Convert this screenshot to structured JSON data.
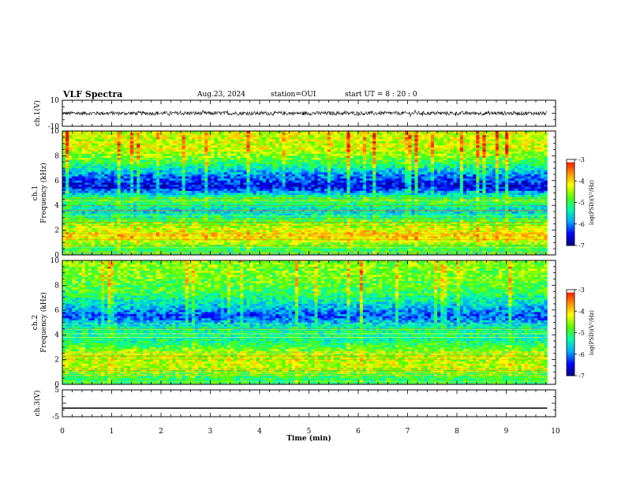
{
  "header": {
    "title": "VLF Spectra",
    "date": "Aug.23, 2024",
    "station": "station=OUI",
    "start_ut": "start UT =  8 : 20 : 0"
  },
  "chart_data": [
    {
      "type": "line",
      "panel": "ch1-waveform",
      "ylabel": "ch.1(V)",
      "ytick_labels": [
        "10",
        "-10"
      ],
      "ylim": [
        -10,
        10
      ],
      "xlim": [
        0,
        10
      ],
      "description_values": {
        "mean": 0,
        "amplitude_range": [
          -1.5,
          1.5
        ]
      }
    },
    {
      "type": "heatmap",
      "panel": "ch1-spectrogram",
      "ylabel_line1": "ch.1",
      "ylabel_line2": "Frequency (kHz)",
      "ytick_labels": [
        "0",
        "2",
        "4",
        "6",
        "8",
        "10"
      ],
      "ylim": [
        0,
        10
      ],
      "xlim": [
        0,
        9.83
      ],
      "colorbar": {
        "label": "log(PSD)(V²/Hz)",
        "tick_labels": [
          "-3",
          "-4",
          "-5",
          "-6",
          "-7"
        ],
        "range": [
          -7,
          -3
        ]
      },
      "approx_log_psd_by_frequency_khz": [
        {
          "f": 0.5,
          "v": -5.0
        },
        {
          "f": 1.5,
          "v": -3.9
        },
        {
          "f": 2.5,
          "v": -4.6
        },
        {
          "f": 3.5,
          "v": -5.6
        },
        {
          "f": 4.5,
          "v": -4.8
        },
        {
          "f": 5.5,
          "v": -6.6
        },
        {
          "f": 6.5,
          "v": -5.9
        },
        {
          "f": 7.5,
          "v": -4.9
        },
        {
          "f": 8.5,
          "v": -4.3
        },
        {
          "f": 9.5,
          "v": -4.3
        }
      ]
    },
    {
      "type": "heatmap",
      "panel": "ch2-spectrogram",
      "ylabel_line1": "ch.2",
      "ylabel_line2": "Frequency (kHz)",
      "ytick_labels": [
        "0",
        "2",
        "4",
        "6",
        "8",
        "10"
      ],
      "ylim": [
        0,
        10
      ],
      "xlim": [
        0,
        9.83
      ],
      "colorbar": {
        "label": "log(PSD)(V²/Hz)",
        "tick_labels": [
          "-3",
          "-4",
          "-5",
          "-6",
          "-7"
        ],
        "range": [
          -7,
          -3
        ]
      },
      "approx_log_psd_by_frequency_khz": [
        {
          "f": 0.5,
          "v": -5.0
        },
        {
          "f": 1.5,
          "v": -4.3
        },
        {
          "f": 2.5,
          "v": -4.5
        },
        {
          "f": 3.5,
          "v": -5.2
        },
        {
          "f": 4.5,
          "v": -5.2
        },
        {
          "f": 5.5,
          "v": -6.2
        },
        {
          "f": 6.5,
          "v": -5.5
        },
        {
          "f": 7.5,
          "v": -4.9
        },
        {
          "f": 8.5,
          "v": -4.7
        },
        {
          "f": 9.5,
          "v": -4.6
        }
      ]
    },
    {
      "type": "line",
      "panel": "ch3-waveform",
      "ylabel": "ch.3(V)",
      "ytick_labels": [
        "5",
        "-5"
      ],
      "ylim": [
        -5,
        5
      ],
      "xlim": [
        0,
        10
      ],
      "x": [
        0,
        9.83
      ],
      "y": [
        -1.8,
        -1.8
      ]
    }
  ],
  "xaxis": {
    "label": "Time (min)",
    "tick_labels": [
      "0",
      "1",
      "2",
      "3",
      "4",
      "5",
      "6",
      "7",
      "8",
      "9",
      "10"
    ],
    "range": [
      0,
      10
    ]
  },
  "colors": {
    "colormap": [
      "#000080",
      "#0000ff",
      "#00aaff",
      "#00ffaa",
      "#55ff00",
      "#ffff00",
      "#ff8800",
      "#ff0000",
      "#ffffff"
    ]
  }
}
